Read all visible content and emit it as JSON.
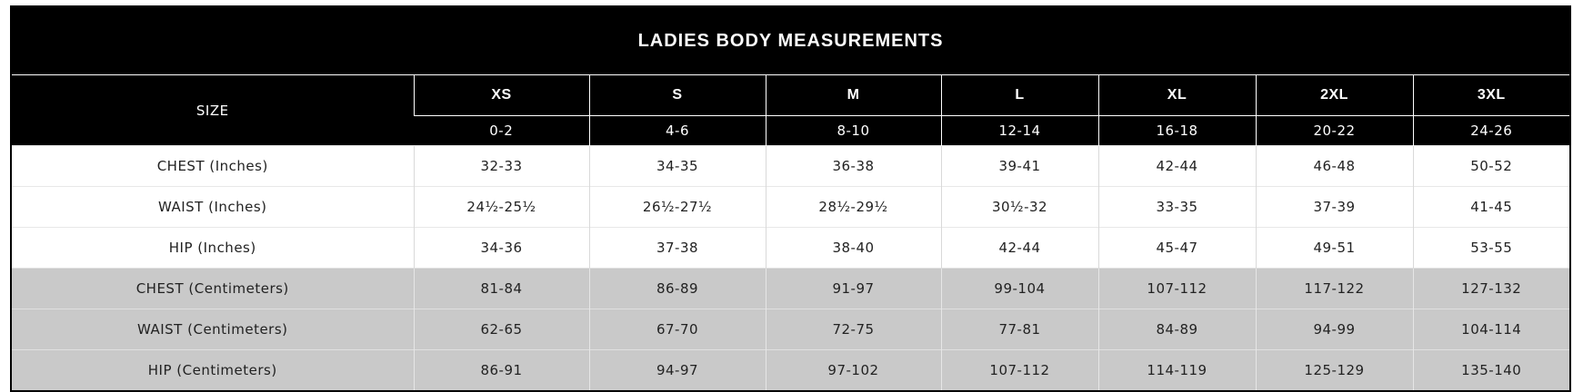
{
  "header": {
    "title": "LADIES BODY MEASUREMENTS",
    "size_label": "SIZE",
    "sizes": [
      "XS",
      "S",
      "M",
      "L",
      "XL",
      "2XL",
      "3XL"
    ],
    "ranges": [
      "0-2",
      "4-6",
      "8-10",
      "12-14",
      "16-18",
      "20-22",
      "24-26"
    ]
  },
  "table": {
    "rows": [
      {
        "label": "CHEST (Inches)",
        "values": [
          "32-33",
          "34-35",
          "36-38",
          "39-41",
          "42-44",
          "46-48",
          "50-52"
        ]
      },
      {
        "label": "WAIST (Inches)",
        "values": [
          "24½-25½",
          "26½-27½",
          "28½-29½",
          "30½-32",
          "33-35",
          "37-39",
          "41-45"
        ]
      },
      {
        "label": "HIP (Inches)",
        "values": [
          "34-36",
          "37-38",
          "38-40",
          "42-44",
          "45-47",
          "49-51",
          "53-55"
        ]
      },
      {
        "label": "CHEST (Centimeters)",
        "values": [
          "81-84",
          "86-89",
          "91-97",
          "99-104",
          "107-112",
          "117-122",
          "127-132"
        ]
      },
      {
        "label": "WAIST (Centimeters)",
        "values": [
          "62-65",
          "67-70",
          "72-75",
          "77-81",
          "84-89",
          "94-99",
          "104-114"
        ]
      },
      {
        "label": "HIP (Centimeters)",
        "values": [
          "86-91",
          "94-97",
          "97-102",
          "107-112",
          "114-119",
          "125-129",
          "135-140"
        ]
      }
    ]
  }
}
